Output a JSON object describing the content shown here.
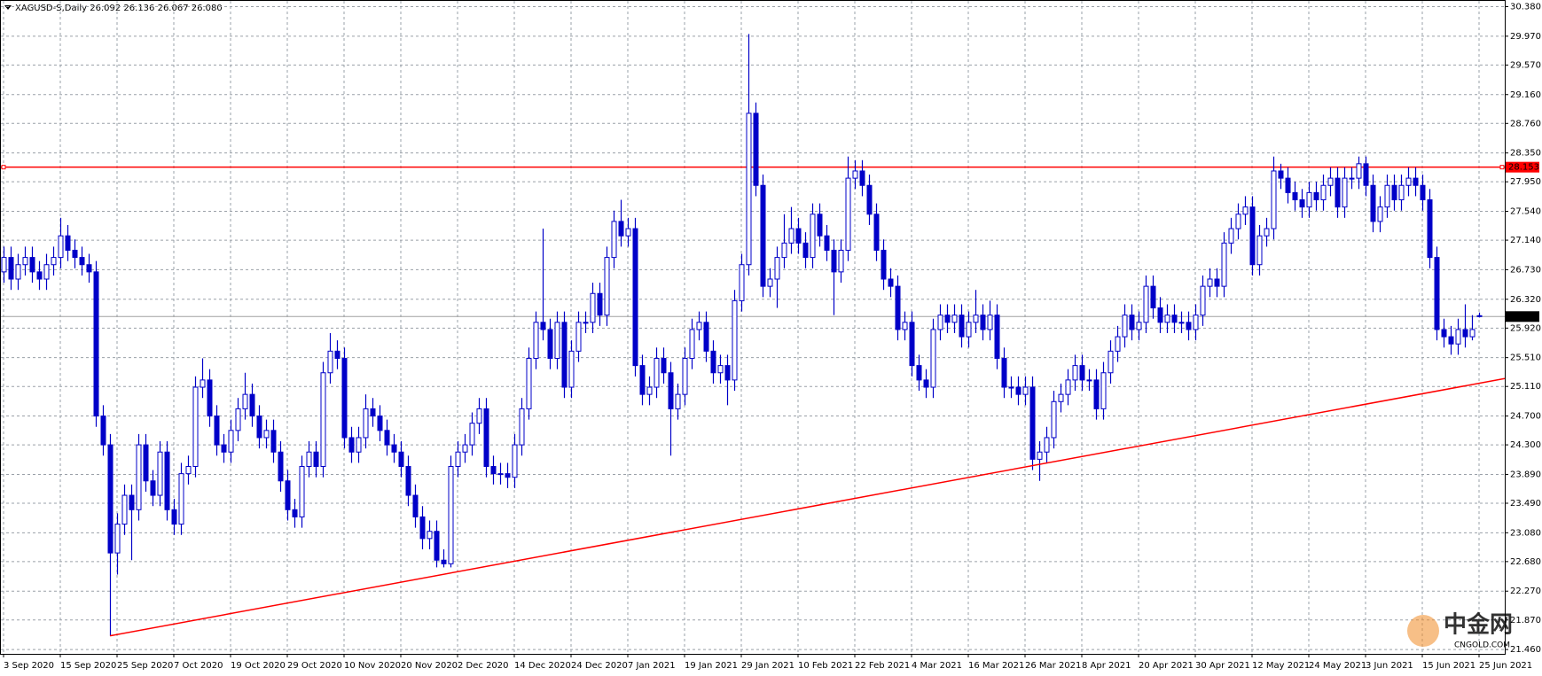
{
  "chart_data": {
    "type": "candlestick",
    "title": "XAGUSD-S,Daily  26.092 26.136 26.067 26.080",
    "color": "#0000c8",
    "grid": true,
    "categories": [
      "3 Sep 2020",
      null,
      null,
      null,
      null,
      null,
      null,
      null,
      "15 Sep 2020",
      null,
      null,
      null,
      null,
      null,
      null,
      null,
      "25 Sep 2020",
      null,
      null,
      null,
      null,
      null,
      null,
      null,
      "7 Oct 2020",
      null,
      null,
      null,
      null,
      null,
      null,
      null,
      "19 Oct 2020",
      null,
      null,
      null,
      null,
      null,
      null,
      null,
      "29 Oct 2020",
      null,
      null,
      null,
      null,
      null,
      null,
      null,
      "10 Nov 2020",
      null,
      null,
      null,
      null,
      null,
      null,
      null,
      "20 Nov 2020",
      null,
      null,
      null,
      null,
      null,
      null,
      null,
      "2 Dec 2020",
      null,
      null,
      null,
      null,
      null,
      null,
      null,
      "14 Dec 2020",
      null,
      null,
      null,
      null,
      null,
      null,
      null,
      "24 Dec 2020",
      null,
      null,
      null,
      null,
      null,
      null,
      null,
      "7 Jan 2021",
      null,
      null,
      null,
      null,
      null,
      null,
      null,
      "19 Jan 2021",
      null,
      null,
      null,
      null,
      null,
      null,
      null,
      "29 Jan 2021",
      null,
      null,
      null,
      null,
      null,
      null,
      null,
      "10 Feb 2021",
      null,
      null,
      null,
      null,
      null,
      null,
      null,
      "22 Feb 2021",
      null,
      null,
      null,
      null,
      null,
      null,
      null,
      "4 Mar 2021",
      null,
      null,
      null,
      null,
      null,
      null,
      null,
      "16 Mar 2021",
      null,
      null,
      null,
      null,
      null,
      null,
      null,
      "26 Mar 2021",
      null,
      null,
      null,
      null,
      null,
      null,
      null,
      "8 Apr 2021",
      null,
      null,
      null,
      null,
      null,
      null,
      null,
      "20 Apr 2021",
      null,
      null,
      null,
      null,
      null,
      null,
      null,
      "30 Apr 2021",
      null,
      null,
      null,
      null,
      null,
      null,
      null,
      "12 May 2021",
      null,
      null,
      null,
      null,
      null,
      null,
      null,
      "24 May 2021",
      null,
      null,
      null,
      null,
      null,
      null,
      null,
      "3 Jun 2021",
      null,
      null,
      null,
      null,
      null,
      null,
      null,
      "15 Jun 2021",
      null,
      null,
      null,
      null,
      null,
      null,
      null,
      "25 Jun 2021"
    ],
    "open": [
      26.7,
      26.9,
      26.6,
      26.8,
      26.9,
      26.7,
      26.6,
      26.8,
      26.9,
      27.2,
      27.0,
      26.9,
      26.8,
      26.7,
      24.7,
      24.3,
      22.8,
      23.2,
      23.6,
      23.4,
      24.3,
      23.8,
      23.6,
      24.2,
      23.4,
      23.2,
      23.9,
      24.0,
      25.1,
      25.2,
      24.7,
      24.3,
      24.2,
      24.5,
      24.8,
      25.0,
      24.7,
      24.4,
      24.5,
      24.2,
      23.8,
      23.4,
      23.3,
      24.0,
      24.2,
      24.0,
      25.3,
      25.6,
      25.5,
      24.4,
      24.2,
      24.4,
      24.8,
      24.7,
      24.5,
      24.3,
      24.2,
      24.0,
      23.6,
      23.3,
      23.0,
      23.1,
      22.7,
      22.65,
      24.0,
      24.2,
      24.3,
      24.6,
      24.8,
      24.0,
      23.9,
      23.9,
      23.85,
      24.3,
      24.8,
      25.5,
      26.0,
      25.9,
      25.5,
      26.0,
      25.1,
      25.6,
      26.0,
      26.0,
      26.4,
      26.1,
      26.9,
      27.4,
      27.2,
      27.3,
      25.4,
      25.0,
      25.1,
      25.5,
      25.3,
      24.8,
      25.0,
      25.5,
      25.9,
      26.0,
      25.6,
      25.3,
      25.4,
      25.2,
      26.3,
      26.8,
      28.9,
      27.9,
      26.5,
      26.6,
      26.9,
      27.1,
      27.3,
      27.1,
      26.9,
      27.5,
      27.2,
      27.0,
      26.7,
      27.0,
      28.0,
      28.1,
      27.9,
      27.5,
      27.0,
      26.6,
      26.5,
      25.9,
      26.0,
      25.4,
      25.2,
      25.1,
      25.9,
      26.1,
      26.0,
      26.1,
      25.8,
      26.0,
      26.1,
      25.9,
      26.1,
      25.5,
      25.1,
      25.1,
      25.0,
      25.1,
      24.1,
      24.2,
      24.4,
      24.9,
      25.0,
      25.2,
      25.4,
      25.2,
      25.2,
      24.8,
      25.3,
      25.6,
      25.8,
      26.1,
      25.9,
      26.0,
      26.5,
      26.2,
      26.0,
      26.1,
      26.0,
      26.0,
      25.9,
      26.1,
      26.5,
      26.6,
      26.5,
      27.1,
      27.3,
      27.5,
      27.6,
      26.8,
      27.2,
      27.3,
      28.1,
      28.0,
      27.8,
      27.7,
      27.6,
      27.8,
      27.7,
      27.9,
      28.0,
      27.6,
      28.0,
      28.0,
      28.2,
      27.9,
      27.4,
      27.6,
      27.9,
      27.7,
      27.9,
      28.0,
      27.9,
      27.7,
      26.9,
      25.9,
      25.8,
      25.7,
      25.9,
      25.8,
      26.092
    ],
    "high": [
      27.05,
      27.05,
      26.95,
      27.05,
      27.05,
      26.85,
      26.95,
      27.05,
      27.45,
      27.35,
      27.15,
      27.05,
      26.95,
      26.85,
      24.85,
      24.45,
      23.35,
      23.75,
      23.75,
      24.45,
      24.45,
      23.95,
      24.35,
      24.35,
      23.55,
      24.05,
      24.15,
      25.25,
      25.5,
      25.35,
      24.85,
      24.45,
      24.65,
      24.95,
      25.3,
      25.15,
      24.85,
      24.65,
      24.65,
      24.35,
      23.95,
      23.55,
      24.15,
      24.35,
      24.35,
      25.45,
      25.85,
      25.75,
      25.65,
      24.55,
      24.55,
      25.0,
      24.95,
      24.85,
      24.65,
      24.45,
      24.35,
      24.15,
      23.75,
      23.45,
      23.25,
      23.25,
      22.85,
      24.15,
      24.35,
      24.45,
      24.75,
      24.95,
      24.95,
      24.15,
      24.05,
      24.05,
      24.45,
      24.95,
      25.65,
      26.15,
      27.3,
      26.05,
      26.15,
      26.15,
      25.75,
      26.15,
      26.15,
      26.55,
      26.55,
      27.05,
      27.55,
      27.7,
      27.45,
      27.45,
      25.55,
      25.25,
      25.65,
      25.65,
      25.45,
      25.15,
      25.65,
      26.05,
      26.15,
      26.15,
      25.75,
      25.55,
      25.55,
      26.45,
      26.95,
      30.0,
      29.05,
      28.05,
      26.75,
      27.05,
      27.5,
      27.6,
      27.45,
      27.25,
      27.65,
      27.65,
      27.35,
      27.15,
      27.15,
      28.3,
      28.25,
      28.25,
      28.05,
      27.65,
      27.15,
      26.75,
      26.65,
      26.15,
      26.15,
      25.55,
      25.35,
      26.05,
      26.25,
      26.25,
      26.25,
      26.25,
      26.15,
      26.45,
      26.25,
      26.3,
      26.25,
      25.65,
      25.25,
      25.25,
      25.25,
      25.25,
      24.35,
      24.55,
      25.05,
      25.15,
      25.35,
      25.55,
      25.55,
      25.35,
      25.35,
      25.45,
      25.75,
      25.95,
      26.25,
      26.25,
      26.15,
      26.65,
      26.65,
      26.35,
      26.25,
      26.25,
      26.15,
      26.15,
      26.25,
      26.65,
      26.75,
      26.75,
      27.25,
      27.45,
      27.65,
      27.75,
      27.75,
      27.35,
      27.45,
      28.3,
      28.2,
      28.15,
      27.95,
      27.85,
      27.95,
      27.95,
      28.05,
      28.15,
      28.15,
      28.15,
      28.15,
      28.3,
      28.3,
      28.05,
      27.75,
      28.05,
      28.05,
      28.05,
      28.15,
      28.15,
      28.05,
      27.85,
      27.05,
      26.05,
      25.95,
      26.05,
      26.25,
      26.1,
      26.136
    ],
    "low": [
      26.55,
      26.45,
      26.45,
      26.65,
      26.55,
      26.45,
      26.45,
      26.65,
      26.75,
      26.85,
      26.75,
      26.65,
      26.55,
      24.55,
      24.15,
      21.65,
      22.5,
      23.05,
      22.7,
      23.25,
      23.65,
      23.45,
      23.45,
      23.25,
      23.05,
      23.05,
      23.75,
      23.85,
      24.95,
      24.55,
      24.15,
      24.05,
      24.05,
      24.35,
      24.65,
      24.55,
      24.25,
      24.25,
      24.05,
      23.65,
      23.25,
      23.15,
      23.15,
      23.85,
      23.85,
      23.85,
      25.15,
      25.35,
      24.25,
      24.05,
      24.05,
      24.25,
      24.55,
      24.35,
      24.15,
      24.05,
      23.85,
      23.45,
      23.15,
      22.85,
      22.85,
      22.6,
      22.6,
      22.6,
      23.85,
      24.05,
      24.15,
      24.45,
      23.85,
      23.75,
      23.75,
      23.7,
      23.7,
      24.15,
      24.65,
      25.35,
      25.75,
      25.35,
      25.35,
      24.95,
      24.95,
      25.45,
      25.85,
      25.85,
      25.95,
      25.95,
      26.75,
      27.05,
      27.05,
      25.25,
      24.85,
      24.85,
      24.95,
      25.15,
      24.15,
      24.65,
      24.85,
      25.35,
      25.75,
      25.45,
      25.15,
      25.15,
      24.85,
      25.05,
      26.15,
      26.65,
      27.75,
      26.35,
      26.35,
      26.2,
      26.75,
      26.95,
      26.95,
      26.75,
      26.75,
      27.05,
      26.85,
      26.1,
      26.55,
      26.85,
      27.85,
      27.75,
      27.35,
      26.85,
      26.45,
      26.35,
      25.75,
      25.75,
      25.25,
      25.05,
      24.95,
      24.95,
      25.75,
      25.85,
      25.85,
      25.65,
      25.65,
      25.85,
      25.75,
      25.75,
      25.35,
      24.95,
      24.95,
      24.85,
      24.85,
      23.95,
      23.8,
      24.05,
      24.25,
      24.75,
      24.85,
      25.05,
      25.05,
      25.05,
      24.65,
      24.65,
      25.15,
      25.45,
      25.65,
      25.75,
      25.75,
      25.85,
      26.05,
      25.85,
      25.85,
      25.85,
      25.85,
      25.75,
      25.75,
      25.95,
      26.35,
      26.35,
      26.35,
      26.95,
      27.15,
      27.35,
      26.65,
      26.65,
      27.05,
      27.15,
      27.85,
      27.65,
      27.55,
      27.45,
      27.45,
      27.55,
      27.55,
      27.75,
      27.45,
      27.45,
      27.85,
      27.85,
      27.75,
      27.25,
      27.25,
      27.45,
      27.55,
      27.55,
      27.75,
      27.75,
      27.55,
      26.75,
      25.75,
      25.65,
      25.55,
      25.55,
      25.65,
      25.75,
      26.067
    ],
    "close": [
      26.9,
      26.6,
      26.8,
      26.9,
      26.7,
      26.6,
      26.8,
      26.9,
      27.2,
      27.0,
      26.9,
      26.8,
      26.7,
      24.7,
      24.3,
      22.8,
      23.2,
      23.6,
      23.4,
      24.3,
      23.8,
      23.6,
      24.2,
      23.4,
      23.2,
      23.9,
      24.0,
      25.1,
      25.2,
      24.7,
      24.3,
      24.2,
      24.5,
      24.8,
      25.0,
      24.7,
      24.4,
      24.5,
      24.2,
      23.8,
      23.4,
      23.3,
      24.0,
      24.2,
      24.0,
      25.3,
      25.6,
      25.5,
      24.4,
      24.2,
      24.4,
      24.8,
      24.7,
      24.5,
      24.3,
      24.2,
      24.0,
      23.6,
      23.3,
      23.0,
      23.1,
      22.7,
      22.65,
      24.0,
      24.2,
      24.3,
      24.6,
      24.8,
      24.0,
      23.9,
      23.9,
      23.85,
      24.3,
      24.8,
      25.5,
      26.0,
      25.9,
      25.5,
      26.0,
      25.1,
      25.6,
      26.0,
      26.0,
      26.4,
      26.1,
      26.9,
      27.4,
      27.2,
      27.3,
      25.4,
      25.0,
      25.1,
      25.5,
      25.3,
      24.8,
      25.0,
      25.5,
      25.9,
      26.0,
      25.6,
      25.3,
      25.4,
      25.2,
      26.3,
      26.8,
      28.9,
      27.9,
      26.5,
      26.6,
      26.9,
      27.1,
      27.3,
      27.1,
      26.9,
      27.5,
      27.2,
      27.0,
      26.7,
      27.0,
      28.0,
      28.1,
      27.9,
      27.5,
      27.0,
      26.6,
      26.5,
      25.9,
      26.0,
      25.4,
      25.2,
      25.1,
      25.9,
      26.1,
      26.0,
      26.1,
      25.8,
      26.0,
      26.1,
      25.9,
      26.1,
      25.5,
      25.1,
      25.1,
      25.0,
      25.1,
      24.1,
      24.2,
      24.4,
      24.9,
      25.0,
      25.2,
      25.4,
      25.2,
      25.2,
      24.8,
      25.3,
      25.6,
      25.8,
      26.1,
      25.9,
      26.0,
      26.5,
      26.2,
      26.0,
      26.1,
      26.0,
      26.0,
      25.9,
      26.1,
      26.5,
      26.6,
      26.5,
      27.1,
      27.3,
      27.5,
      27.6,
      26.8,
      27.2,
      27.3,
      28.1,
      28.0,
      27.8,
      27.7,
      27.6,
      27.8,
      27.7,
      27.9,
      28.0,
      27.6,
      28.0,
      28.0,
      28.2,
      27.9,
      27.4,
      27.6,
      27.9,
      27.7,
      27.9,
      28.0,
      27.9,
      27.7,
      26.9,
      25.9,
      25.8,
      25.7,
      25.9,
      25.8,
      25.9,
      26.08
    ],
    "ylim": [
      21.4,
      30.46
    ],
    "yticks": [
      {
        "value": 30.38,
        "label": "30.380"
      },
      {
        "value": 29.97,
        "label": "29.970"
      },
      {
        "value": 29.57,
        "label": "29.570"
      },
      {
        "value": 29.16,
        "label": "29.160"
      },
      {
        "value": 28.76,
        "label": "28.760"
      },
      {
        "value": 28.35,
        "label": "28.350"
      },
      {
        "value": 27.95,
        "label": "27.950"
      },
      {
        "value": 27.54,
        "label": "27.540"
      },
      {
        "value": 27.14,
        "label": "27.140"
      },
      {
        "value": 26.73,
        "label": "26.730"
      },
      {
        "value": 26.32,
        "label": "26.320"
      },
      {
        "value": 25.92,
        "label": "25.920"
      },
      {
        "value": 25.51,
        "label": "25.510"
      },
      {
        "value": 25.11,
        "label": "25.110"
      },
      {
        "value": 24.7,
        "label": "24.700"
      },
      {
        "value": 24.3,
        "label": "24.300"
      },
      {
        "value": 23.89,
        "label": "23.890"
      },
      {
        "value": 23.49,
        "label": "23.490"
      },
      {
        "value": 23.08,
        "label": "23.080"
      },
      {
        "value": 22.68,
        "label": "22.680"
      },
      {
        "value": 22.27,
        "label": "22.270"
      },
      {
        "value": 21.87,
        "label": "21.870"
      },
      {
        "value": 21.46,
        "label": "21.460"
      }
    ],
    "level_line": {
      "value": 28.153,
      "color": "#ff0000"
    },
    "last_price": {
      "value": 26.08,
      "label": "26.080",
      "color": "#a0a0a0"
    },
    "trendline": {
      "values": [
        21.65,
        25.22
      ],
      "color": "#ff0000"
    },
    "watermark": [
      "中金网",
      "CNGOLD.COM"
    ]
  }
}
